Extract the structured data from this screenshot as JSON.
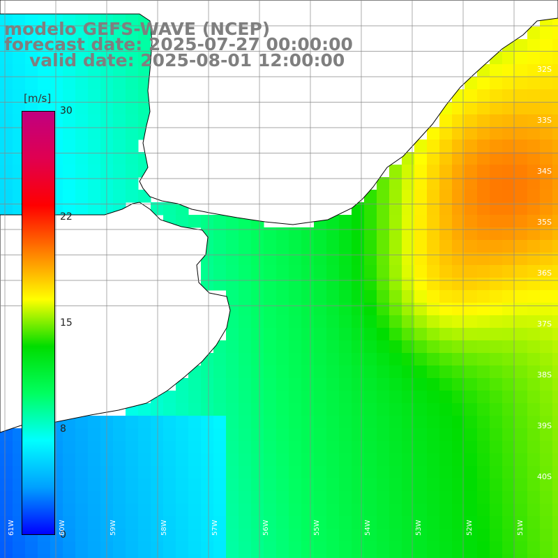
{
  "title": {
    "line1": "modelo GEFS-WAVE (NCEP)",
    "line2": "forecast date: 2025-07-27 00:00:00",
    "line3": "valid date: 2025-08-01 12:00:00"
  },
  "colorbar": {
    "units": "[m/s]",
    "ticks": [
      "30",
      "22",
      "15",
      "8",
      "0"
    ],
    "tick_values": [
      30,
      22,
      15,
      8,
      0
    ],
    "range": [
      0,
      30
    ],
    "stops": [
      "#0000ff",
      "#00a0ff",
      "#00ffff",
      "#00ff60",
      "#00dd00",
      "#ffff00",
      "#ff8000",
      "#ff0000",
      "#e00050",
      "#c00080"
    ]
  },
  "map": {
    "lat_labels": [
      "32S",
      "33S",
      "34S",
      "35S",
      "36S",
      "37S",
      "38S",
      "39S",
      "40S"
    ],
    "lon_labels": [
      "61W",
      "60W",
      "59W",
      "58W",
      "57W",
      "56W",
      "55W",
      "54W",
      "53W",
      "52W",
      "51W"
    ],
    "land_color": "#ffffff",
    "coast_color": "#000000",
    "grid_color": "#888888",
    "arrow_color": "#ffffff"
  }
}
